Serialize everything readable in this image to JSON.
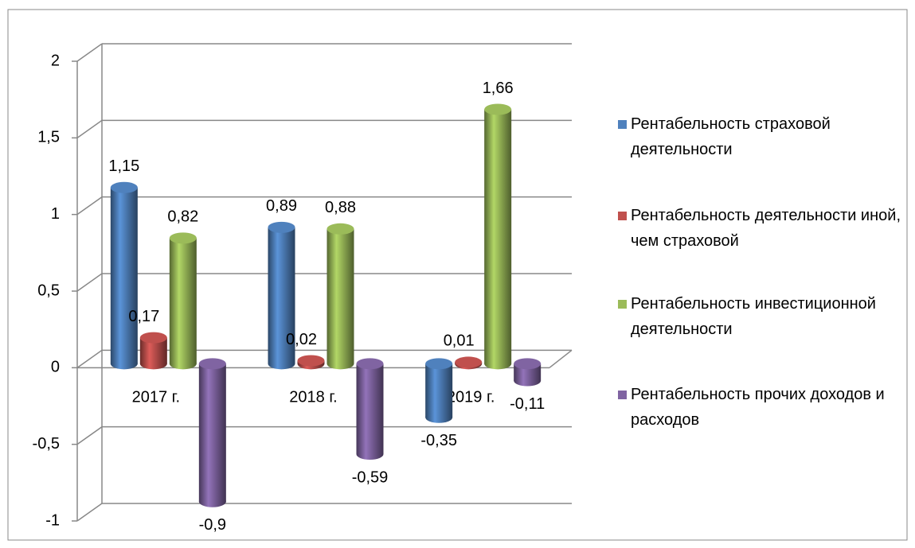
{
  "chart_data": {
    "type": "bar",
    "categories": [
      "2017 г.",
      "2018 г.",
      "2019 г."
    ],
    "series": [
      {
        "name": "Рентабельность страховой деятельности",
        "color": "#4f81bd",
        "values": [
          1.15,
          0.89,
          -0.35
        ],
        "value_labels": [
          "1,15",
          "0,89",
          "-0,35"
        ]
      },
      {
        "name": "Рентабельность деятельности иной, чем страховой",
        "color": "#c0504d",
        "values": [
          0.17,
          0.02,
          0.01
        ],
        "value_labels": [
          "0,17",
          "0,02",
          "0,01"
        ]
      },
      {
        "name": "Рентабельность инвестиционной деятельности",
        "color": "#9bbb59",
        "values": [
          0.82,
          0.88,
          1.66
        ],
        "value_labels": [
          "0,82",
          "0,88",
          "1,66"
        ]
      },
      {
        "name": "Рентабельность прочих доходов и расходов",
        "color": "#8064a2",
        "values": [
          -0.9,
          -0.59,
          -0.11
        ],
        "value_labels": [
          "-0,9",
          "-0,59",
          "-0,11"
        ]
      }
    ],
    "ylim": [
      -1,
      2
    ],
    "yticks": [
      -1,
      {
        "value": -0.5,
        "label": "-0,5"
      },
      0,
      {
        "value": 0.5,
        "label": "0,5"
      },
      1,
      {
        "value": 1.5,
        "label": "1,5"
      },
      2
    ],
    "grid": true,
    "legend": "right"
  }
}
